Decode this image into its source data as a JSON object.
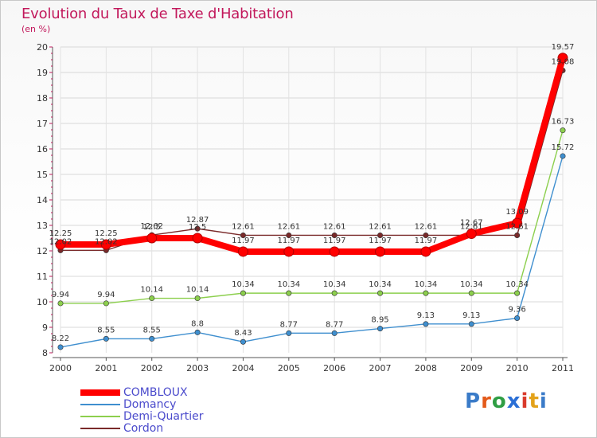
{
  "title": "Evolution du Taux de Taxe d'Habitation",
  "unit": "(en %)",
  "logo": "Proxiti",
  "chart_data": {
    "type": "line",
    "title": "Evolution du Taux de Taxe d'Habitation",
    "ylabel": "(en %)",
    "ylim": [
      8,
      20
    ],
    "yticks": [
      8,
      9,
      10,
      11,
      12,
      13,
      14,
      15,
      16,
      17,
      18,
      19,
      20
    ],
    "categories": [
      "2000",
      "2001",
      "2002",
      "2003",
      "2004",
      "2005",
      "2006",
      "2007",
      "2008",
      "2009",
      "2010",
      "2011"
    ],
    "legend_position": "bottom-left",
    "series": [
      {
        "name": "Cordon",
        "color": "#7a2a2a",
        "values": [
          12.02,
          12.02,
          12.62,
          12.87,
          12.61,
          12.61,
          12.61,
          12.61,
          12.61,
          12.61,
          12.61,
          19.08
        ],
        "labels": [
          "12.02",
          "12.02",
          "12.62",
          "12.87",
          "12.61",
          "12.61",
          "12.61",
          "12.61",
          "12.61",
          "12.61",
          "12.61",
          "19.08"
        ]
      },
      {
        "name": "Demi-Quartier",
        "color": "#8ccf4d",
        "values": [
          9.94,
          9.94,
          10.14,
          10.14,
          10.34,
          10.34,
          10.34,
          10.34,
          10.34,
          10.34,
          10.34,
          16.73
        ],
        "labels": [
          "9.94",
          "9.94",
          "10.14",
          "10.14",
          "10.34",
          "10.34",
          "10.34",
          "10.34",
          "10.34",
          "10.34",
          "10.34",
          "16.73"
        ]
      },
      {
        "name": "Domancy",
        "color": "#3f8fcf",
        "values": [
          8.22,
          8.55,
          8.55,
          8.8,
          8.43,
          8.77,
          8.77,
          8.95,
          9.13,
          9.13,
          9.36,
          15.72
        ],
        "labels": [
          "8.22",
          "8.55",
          "8.55",
          "8.8",
          "8.43",
          "8.77",
          "8.77",
          "8.95",
          "9.13",
          "9.13",
          "9.36",
          "15.72"
        ]
      },
      {
        "name": "COMBLOUX",
        "color": "#ff0000",
        "values": [
          12.25,
          12.25,
          12.5,
          12.5,
          11.97,
          11.97,
          11.97,
          11.97,
          11.97,
          12.67,
          13.09,
          19.57
        ],
        "labels": [
          "12.25",
          "12.25",
          "12.5",
          "12.5",
          "11.97",
          "11.97",
          "11.97",
          "11.97",
          "11.97",
          "12.67",
          "13.09",
          "19.57"
        ]
      }
    ],
    "legend": [
      "COMBLOUX",
      "Domancy",
      "Demi-Quartier",
      "Cordon"
    ]
  }
}
